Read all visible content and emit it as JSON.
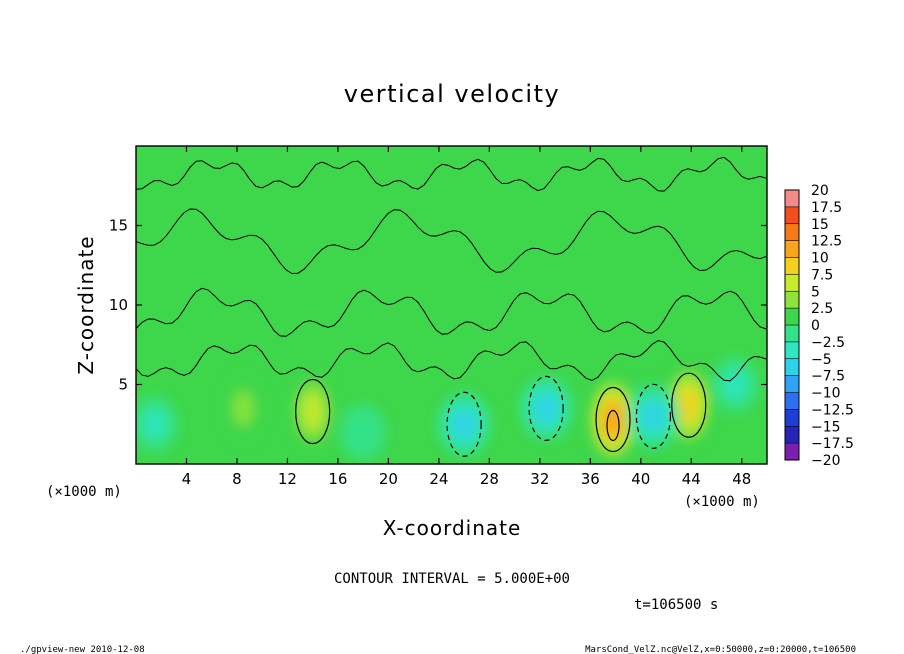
{
  "chart_data": {
    "type": "heatmap",
    "title": "vertical velocity",
    "xlabel": "X-coordinate",
    "ylabel": "Z-coordinate",
    "x_unit_left": "(×1000 m)",
    "x_unit_right": "(×1000 m)",
    "xlim": [
      0,
      50
    ],
    "ylim": [
      0,
      20
    ],
    "x_ticks": [
      4,
      8,
      12,
      16,
      20,
      24,
      28,
      32,
      36,
      40,
      44,
      48
    ],
    "y_ticks": [
      5,
      10,
      15
    ],
    "contour_interval_label": "CONTOUR INTERVAL = 5.000E+00",
    "time_label": "t=106500 s",
    "footer_left": "./gpview-new  2010-12-08",
    "footer_right": "MarsCond_VelZ.nc@VelZ,x=0:50000,z=0:20000,t=106500",
    "colorbar": {
      "levels": [
        -20,
        -17.5,
        -15,
        -12.5,
        -10,
        -7.5,
        -5,
        -2.5,
        0,
        2.5,
        5,
        7.5,
        10,
        12.5,
        15,
        17.5,
        20
      ],
      "colors": [
        "#7a1fb0",
        "#2424b8",
        "#1d3fd6",
        "#2e6ef0",
        "#2fa3f5",
        "#2fd2e8",
        "#2fe6c2",
        "#34e28a",
        "#3ed64a",
        "#8ee43a",
        "#c8ea2c",
        "#f2d21e",
        "#f7a51a",
        "#f77a18",
        "#f24e1e",
        "#f48a8a"
      ]
    },
    "features": [
      {
        "kind": "updraft",
        "x": 14,
        "z": 3.3,
        "peak": 7.5
      },
      {
        "kind": "updraft",
        "x": 37.8,
        "z": 2.8,
        "peak": 12
      },
      {
        "kind": "updraft",
        "x": 43.8,
        "z": 3.7,
        "peak": 8
      },
      {
        "kind": "updraft",
        "x": 8.5,
        "z": 3.5,
        "peak": 3
      },
      {
        "kind": "downdraft",
        "x": 1.5,
        "z": 2.5,
        "peak": -4
      },
      {
        "kind": "downdraft",
        "x": 26,
        "z": 2.5,
        "peak": -7
      },
      {
        "kind": "downdraft",
        "x": 32.5,
        "z": 3.5,
        "peak": -6
      },
      {
        "kind": "downdraft",
        "x": 41,
        "z": 3,
        "peak": -7
      },
      {
        "kind": "downdraft",
        "x": 47.5,
        "z": 5,
        "peak": -3
      },
      {
        "kind": "downdraft",
        "x": 18,
        "z": 2,
        "peak": -2
      }
    ]
  }
}
